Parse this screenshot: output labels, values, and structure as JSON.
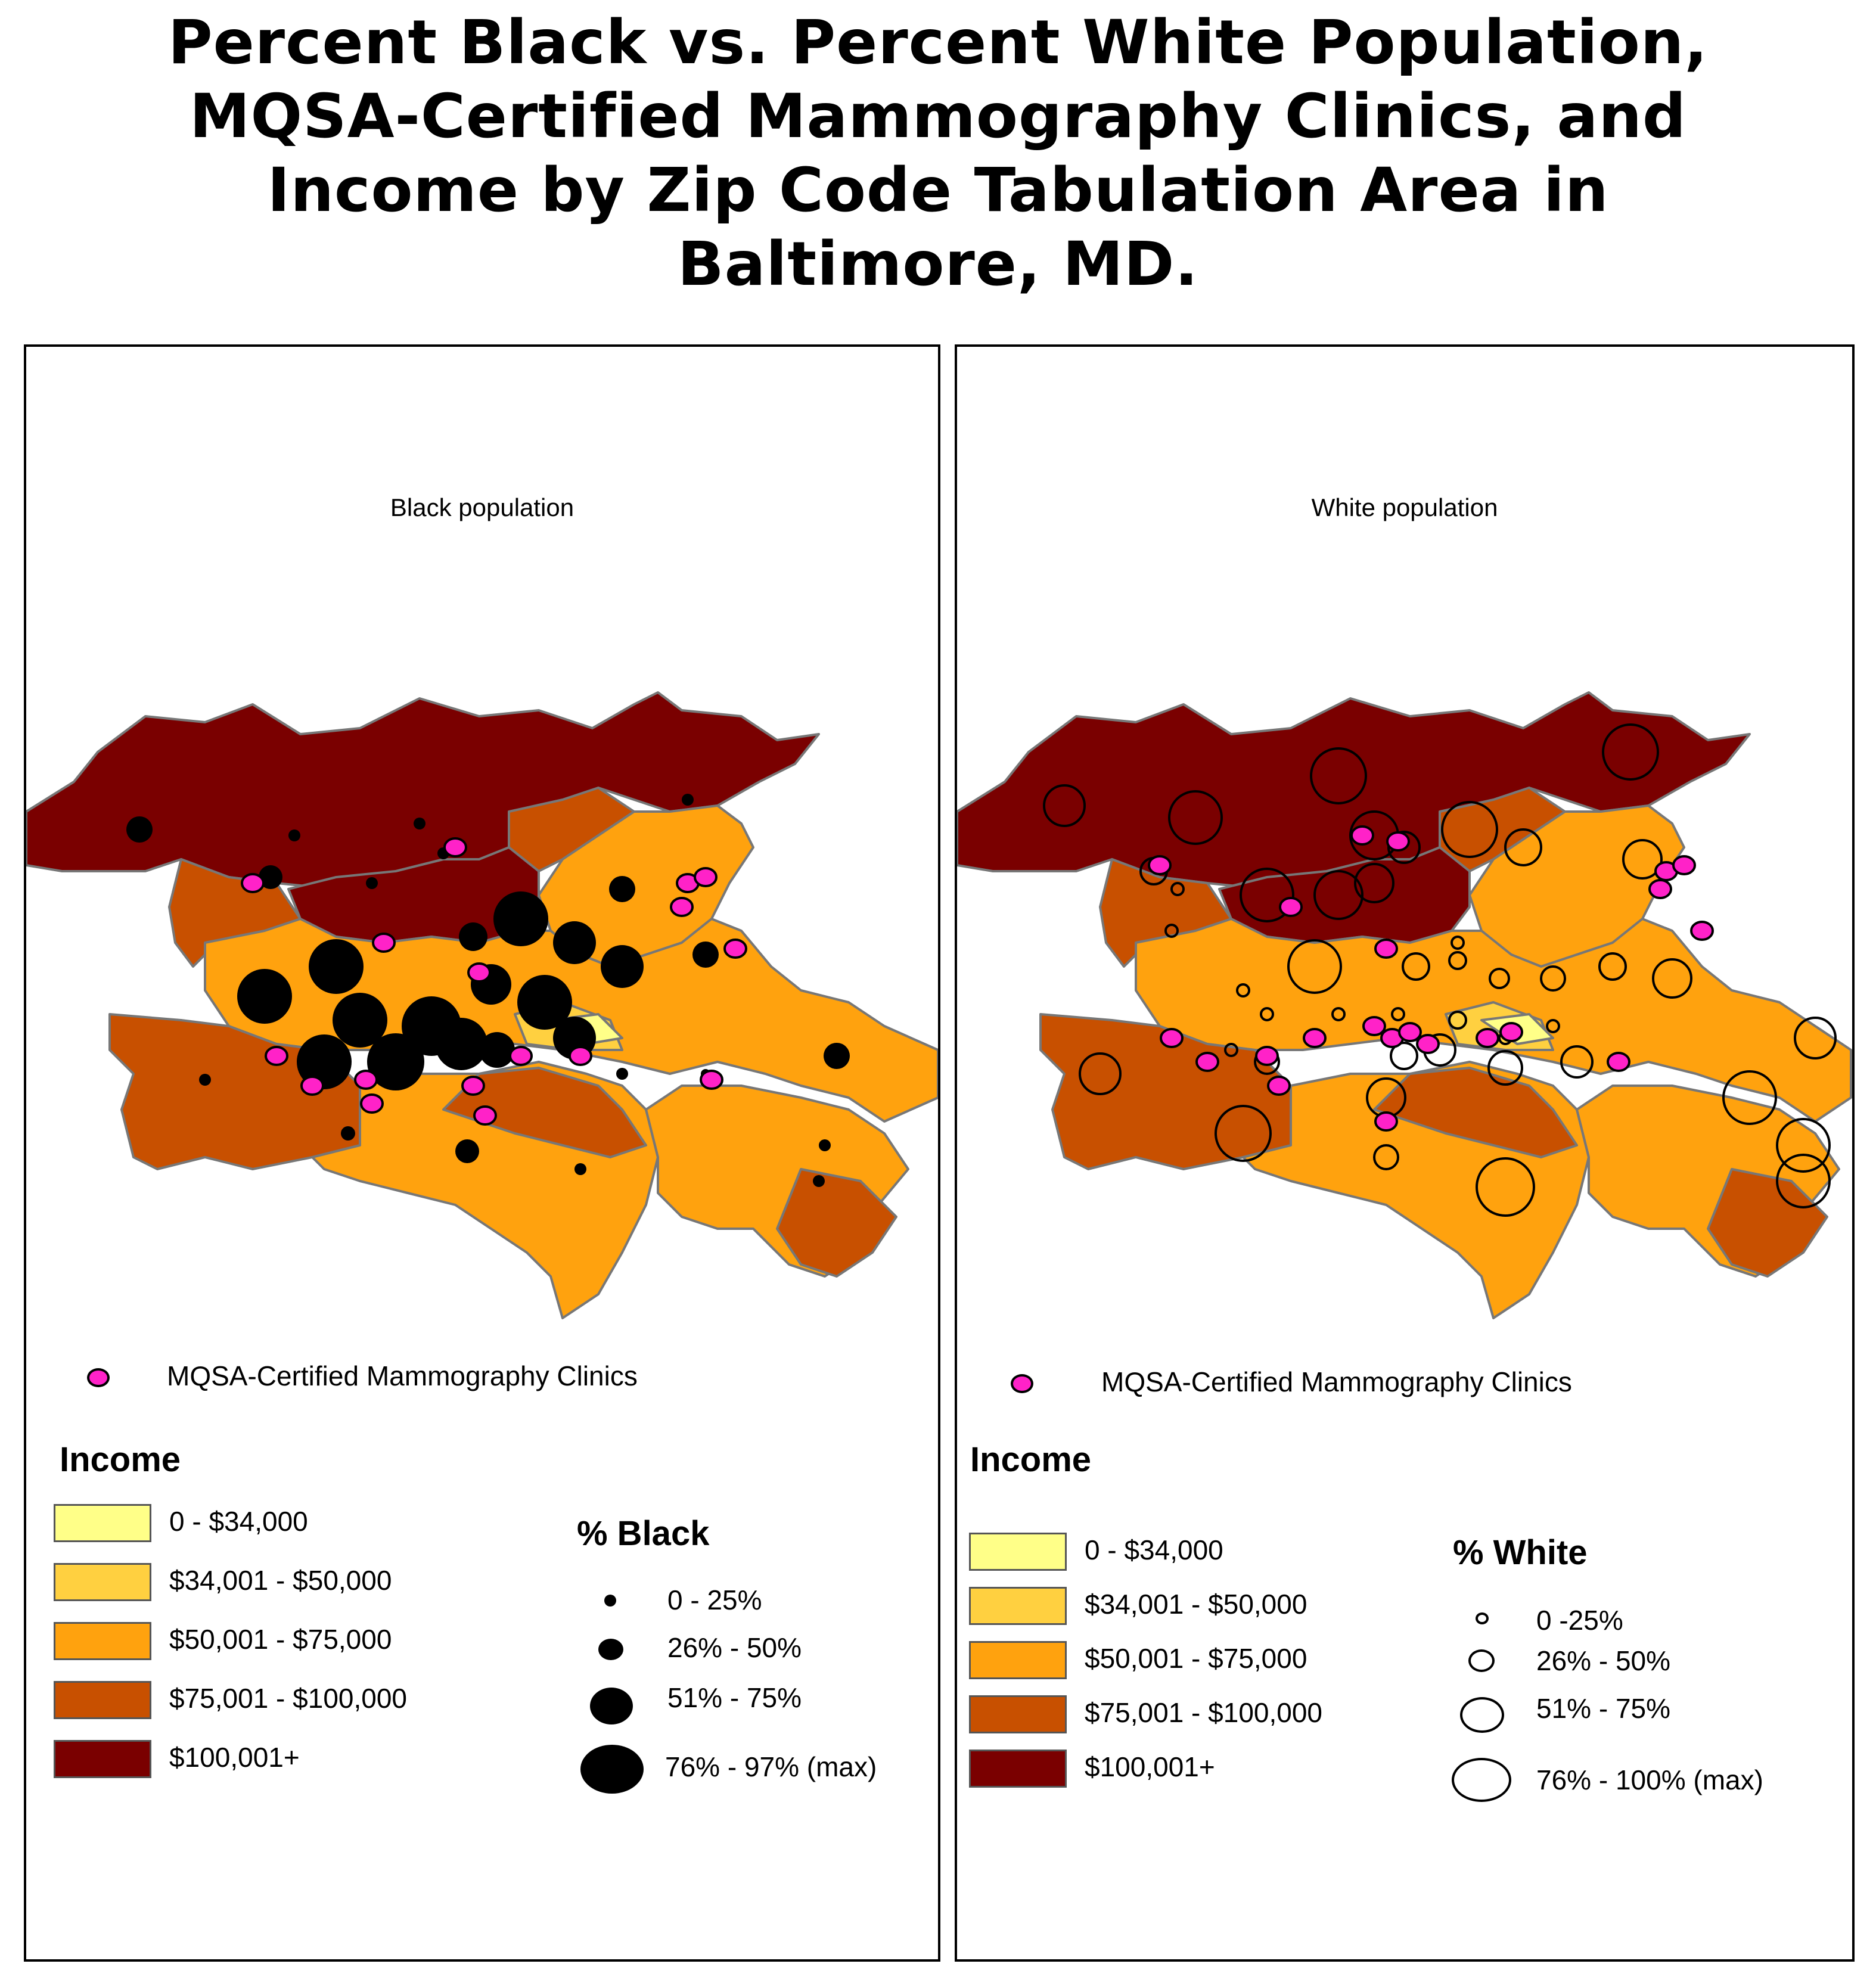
{
  "title_lines": [
    "Percent Black vs. Percent White Population,",
    "MQSA-Certified Mammography Clinics, and",
    "Income by Zip Code Tabulation Area in",
    "Baltimore, MD."
  ],
  "colors": {
    "income_0_34k": "#ffff88",
    "income_34_50k": "#ffd040",
    "income_50_75k": "#ffa20e",
    "income_75_100k": "#c85000",
    "income_100k_plus": "#7a0000",
    "clinic": "#ff22c8",
    "border": "#777777"
  },
  "left_panel": {
    "title": "Black population",
    "clinic_legend": "MQSA-Certified Mammography Clinics",
    "income_title": "Income",
    "income_classes": [
      {
        "label": "0 - $34,000",
        "color": "#ffff88"
      },
      {
        "label": "$34,001 - $50,000",
        "color": "#ffd040"
      },
      {
        "label": "$50,001 - $75,000",
        "color": "#ffa20e"
      },
      {
        "label": "$75,001 - $100,000",
        "color": "#c85000"
      },
      {
        "label": "$100,001+",
        "color": "#7a0000"
      }
    ],
    "pct_title": "% Black",
    "pct_classes": [
      "0 - 25%",
      "26% - 50%",
      "51% - 75%",
      "76% - 97% (max)"
    ]
  },
  "right_panel": {
    "title": "White population",
    "clinic_legend": "MQSA-Certified Mammography Clinics",
    "income_title": "Income",
    "income_classes": [
      {
        "label": "0 - $34,000",
        "color": "#ffff88"
      },
      {
        "label": "$34,001 - $50,000",
        "color": "#ffd040"
      },
      {
        "label": "$50,001 - $75,000",
        "color": "#ffa20e"
      },
      {
        "label": "$75,001 - $100,000",
        "color": "#c85000"
      },
      {
        "label": "$100,001+",
        "color": "#7a0000"
      }
    ],
    "pct_title": "% White",
    "pct_classes": [
      "0 -25%",
      "26% - 50%",
      "51% - 75%",
      "76% - 100% (max)"
    ]
  }
}
